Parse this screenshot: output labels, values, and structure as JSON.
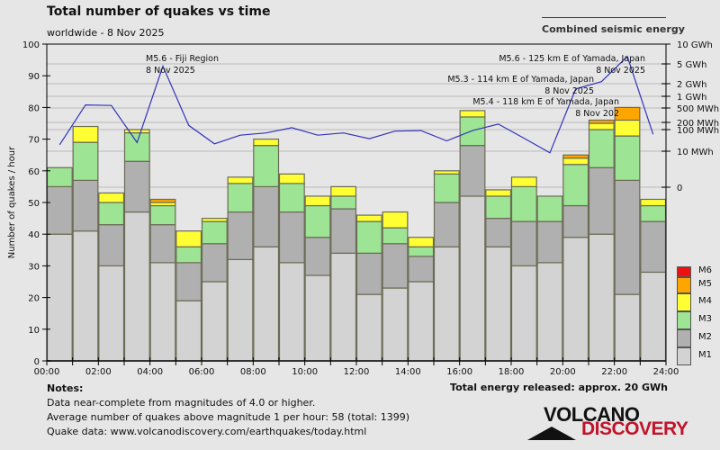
{
  "header": {
    "title": "Total number of quakes vs time",
    "subtitle": "worldwide -  8 Nov 2025",
    "energy_legend": "Combined seismic energy"
  },
  "notes": {
    "heading": "Notes:",
    "lines": [
      "Data near-complete from magnitudes of 4.0 or higher.",
      "Average number of quakes above magnitude 1 per hour: 58 (total: 1399)",
      "Quake data: www.volcanodiscovery.com/earthquakes/today.html"
    ]
  },
  "total_energy": "Total energy released: approx. 20 GWh",
  "logo": {
    "line1": "VOLCANO",
    "line2": "DISCOVERY"
  },
  "colors": {
    "M1": "#d3d3d3",
    "M2": "#b0b0b0",
    "M3": "#9de594",
    "M4": "#ffff33",
    "M5": "#ffa500",
    "M6": "#ee1111",
    "energy_line": "#3333bb"
  },
  "chart_data": {
    "type": "bar",
    "stacked": true,
    "title": "Total number of quakes vs time",
    "xlabel": "",
    "ylabel": "Number of quakes / hour",
    "ylim": [
      0,
      100
    ],
    "yticks": [
      0,
      10,
      20,
      30,
      40,
      50,
      60,
      70,
      80,
      90,
      100
    ],
    "xticks": [
      "00:00",
      "02:00",
      "04:00",
      "06:00",
      "08:00",
      "10:00",
      "12:00",
      "14:00",
      "16:00",
      "18:00",
      "20:00",
      "22:00",
      "24:00"
    ],
    "categories": [
      "00",
      "01",
      "02",
      "03",
      "04",
      "05",
      "06",
      "07",
      "08",
      "09",
      "10",
      "11",
      "12",
      "13",
      "14",
      "15",
      "16",
      "17",
      "18",
      "19",
      "20",
      "21",
      "22",
      "23"
    ],
    "series": [
      {
        "name": "M1",
        "values": [
          40,
          41,
          30,
          47,
          31,
          19,
          25,
          32,
          36,
          31,
          27,
          34,
          21,
          23,
          25,
          36,
          52,
          36,
          30,
          31,
          39,
          40,
          21,
          28
        ]
      },
      {
        "name": "M2",
        "values": [
          15,
          16,
          13,
          16,
          12,
          12,
          12,
          15,
          19,
          16,
          12,
          14,
          13,
          14,
          8,
          14,
          16,
          9,
          14,
          13,
          10,
          21,
          36,
          16
        ]
      },
      {
        "name": "M3",
        "values": [
          6,
          12,
          7,
          9,
          6,
          5,
          7,
          9,
          13,
          9,
          10,
          4,
          10,
          5,
          3,
          9,
          9,
          7,
          11,
          8,
          13,
          12,
          14,
          5
        ]
      },
      {
        "name": "M4",
        "values": [
          0,
          5,
          3,
          1,
          1,
          5,
          1,
          2,
          2,
          3,
          3,
          3,
          2,
          5,
          3,
          1,
          2,
          2,
          3,
          0,
          2,
          2,
          5,
          2
        ]
      },
      {
        "name": "M5",
        "values": [
          0,
          0,
          0,
          0,
          1,
          0,
          0,
          0,
          0,
          0,
          0,
          0,
          0,
          0,
          0,
          0,
          0,
          0,
          0,
          0,
          1,
          1,
          4,
          0
        ]
      },
      {
        "name": "M6",
        "values": [
          0,
          0,
          0,
          0,
          0,
          0,
          0,
          0,
          0,
          0,
          0,
          0,
          0,
          0,
          0,
          0,
          0,
          0,
          0,
          0,
          0,
          0,
          0,
          0
        ]
      }
    ],
    "legend": [
      "M6",
      "M5",
      "M4",
      "M3",
      "M2",
      "M1"
    ],
    "legend_position": "bottom-right",
    "secondary_axis": {
      "label": "Combined seismic energy",
      "scale": "log",
      "ticks": [
        "10 GWh",
        "5 GWh",
        "2 GWh",
        "1 GWh",
        "500 MWh",
        "200 MWh",
        "100 MWh",
        "10 MWh",
        "0"
      ],
      "tick_values_mwh": [
        10000,
        5000,
        2000,
        1000,
        500,
        200,
        100,
        10,
        0
      ]
    },
    "energy_series_mwh": [
      20,
      600,
      580,
      25,
      4500,
      150,
      22,
      55,
      70,
      120,
      55,
      70,
      38,
      85,
      90,
      30,
      90,
      170,
      40,
      9,
      1500,
      2200,
      6500,
      60
    ],
    "annotations": [
      {
        "hour": 4,
        "line1": "M5.6 - Fiji Region",
        "line2": "8 Nov 2025"
      },
      {
        "hour": 22,
        "line1": "M5.6 - 125 km E of Yamada, Japan",
        "line2": "8 Nov 2025"
      },
      {
        "hour": 20,
        "line1": "M5.3 - 114 km E of Yamada, Japan",
        "line2": "8 Nov 2025"
      },
      {
        "hour": 21,
        "line1": "M5.4 - 118 km E of Yamada, Japan",
        "line2": "8 Nov 202"
      }
    ],
    "grid": "horizontal reference lines at energy ticks"
  }
}
